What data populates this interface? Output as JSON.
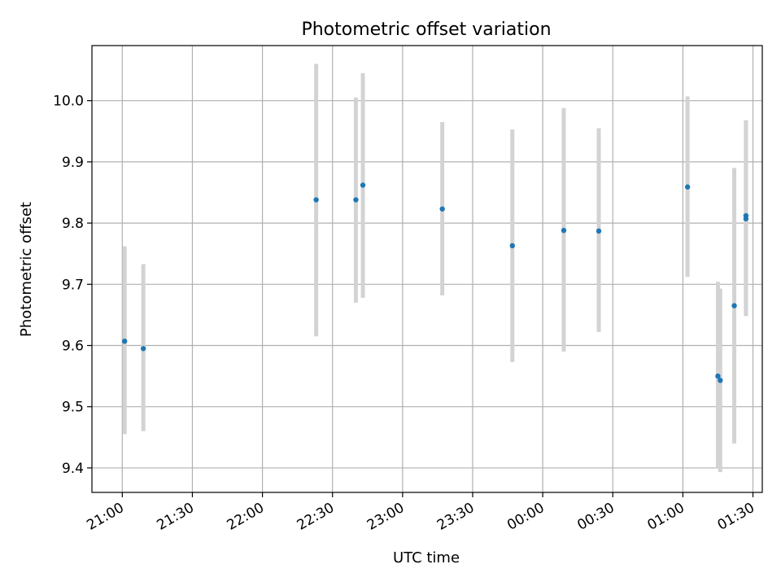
{
  "chart_data": {
    "type": "scatter",
    "title": "Photometric offset variation",
    "xlabel": "UTC time",
    "ylabel": "Photometric offset",
    "x_ticks": [
      "21:00",
      "21:30",
      "22:00",
      "22:30",
      "23:00",
      "23:30",
      "00:00",
      "00:30",
      "01:00",
      "01:30"
    ],
    "x_range": [
      "20:47",
      "01:34"
    ],
    "y_ticks": [
      "9.4",
      "9.5",
      "9.6",
      "9.7",
      "9.8",
      "9.9",
      "10.0"
    ],
    "ylim": [
      9.36,
      10.09
    ],
    "grid": true,
    "colors": {
      "point": "#1f77b4",
      "errorbar": "#d3d3d3",
      "grid": "#b0b0b0"
    },
    "points": [
      {
        "x": "21:01",
        "y": 9.607,
        "err": [
          9.455,
          9.762
        ]
      },
      {
        "x": "21:09",
        "y": 9.595,
        "err": [
          9.46,
          9.733
        ]
      },
      {
        "x": "22:23",
        "y": 9.838,
        "err": [
          9.615,
          10.06
        ]
      },
      {
        "x": "22:40",
        "y": 9.838,
        "err": [
          9.67,
          10.005
        ]
      },
      {
        "x": "22:43",
        "y": 9.862,
        "err": [
          9.678,
          10.045
        ]
      },
      {
        "x": "23:17",
        "y": 9.823,
        "err": [
          9.682,
          9.965
        ]
      },
      {
        "x": "23:47",
        "y": 9.763,
        "err": [
          9.573,
          9.953
        ]
      },
      {
        "x": "00:09",
        "y": 9.788,
        "err": [
          9.59,
          9.988
        ]
      },
      {
        "x": "00:24",
        "y": 9.787,
        "err": [
          9.622,
          9.955
        ]
      },
      {
        "x": "01:02",
        "y": 9.859,
        "err": [
          9.712,
          10.007
        ]
      },
      {
        "x": "01:15",
        "y": 9.55,
        "err": [
          9.4,
          9.704
        ]
      },
      {
        "x": "01:16",
        "y": 9.543,
        "err": [
          9.393,
          9.693
        ]
      },
      {
        "x": "01:22",
        "y": 9.665,
        "err": [
          9.44,
          9.89
        ]
      },
      {
        "x": "01:27",
        "y": 9.812,
        "err": [
          9.655,
          9.968
        ]
      },
      {
        "x": "01:27",
        "y": 9.807,
        "err": [
          9.648,
          9.967
        ]
      }
    ]
  }
}
